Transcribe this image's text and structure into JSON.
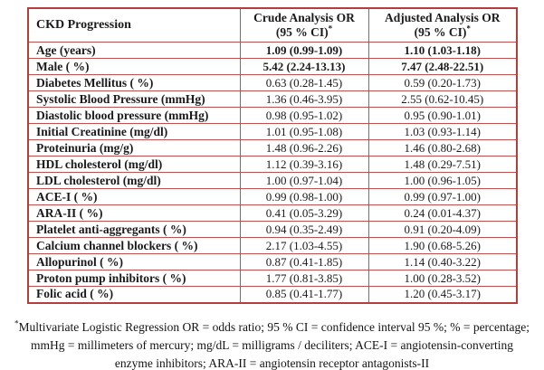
{
  "table": {
    "header": {
      "label": "CKD Progression",
      "crude_title": "Crude Analysis OR",
      "crude_sub": "(95 % CI)",
      "crude_sup": "*",
      "adjusted_title": "Adjusted Analysis OR",
      "adjusted_sub": "(95 % CI)",
      "adjusted_sup": "*"
    },
    "rows": [
      {
        "label": "Age (years)",
        "crude": "1.09 (0.99-1.09)",
        "adjusted": "1.10 (1.03-1.18)",
        "significant": true
      },
      {
        "label": "Male ( %)",
        "crude": "5.42 (2.24-13.13)",
        "adjusted": "7.47 (2.48-22.51)",
        "significant": true
      },
      {
        "label": "Diabetes Mellitus ( %)",
        "crude": "0.63 (0.28-1.45)",
        "adjusted": "0.59 (0.20-1.73)",
        "significant": false
      },
      {
        "label": "Systolic Blood Pressure (mmHg)",
        "crude": "1.36 (0.46-3.95)",
        "adjusted": "2.55 (0.62-10.45)",
        "significant": false
      },
      {
        "label": "Diastolic blood pressure (mmHg)",
        "crude": "0.98 (0.95-1.02)",
        "adjusted": "0.95 (0.90-1.01)",
        "significant": false
      },
      {
        "label": "Initial Creatinine (mg/dl)",
        "crude": "1.01 (0.95-1.08)",
        "adjusted": "1.03 (0.93-1.14)",
        "significant": false
      },
      {
        "label": "Proteinuria (mg/g)",
        "crude": "1.48 (0.96-2.26)",
        "adjusted": "1.46 (0.80-2.68)",
        "significant": false
      },
      {
        "label": "HDL cholesterol (mg/dl)",
        "crude": "1.12 (0.39-3.16)",
        "adjusted": "1.48 (0.29-7.51)",
        "significant": false
      },
      {
        "label": "LDL cholesterol (mg/dl)",
        "crude": "1.00 (0.97-1.04)",
        "adjusted": "1.00 (0.96-1.05)",
        "significant": false
      },
      {
        "label": "ACE-I ( %)",
        "crude": "0.99 (0.98-1.00)",
        "adjusted": "0.99 (0.97-1.00)",
        "significant": false
      },
      {
        "label": "ARA-II ( %)",
        "crude": "0.41 (0.05-3.29)",
        "adjusted": "0.24 (0.01-4.37)",
        "significant": false
      },
      {
        "label": "Platelet anti-aggregants ( %)",
        "crude": "0.94 (0.35-2.49)",
        "adjusted": "0.91 (0.20-4.09)",
        "significant": false
      },
      {
        "label": "Calcium channel blockers ( %)",
        "crude": "2.17 (1.03-4.55)",
        "adjusted": "1.90 (0.68-5.26)",
        "significant": false
      },
      {
        "label": "Allopurinol ( %)",
        "crude": "0.87 (0.41-1.85)",
        "adjusted": "1.14 (0.40-3.22)",
        "significant": false
      },
      {
        "label": "Proton pump inhibitors ( %)",
        "crude": "1.77 (0.81-3.85)",
        "adjusted": "1.00 (0.28-3.52)",
        "significant": false
      },
      {
        "label": "Folic acid ( %)",
        "crude": "0.85 (0.41-1.77)",
        "adjusted": "1.20 (0.45-3.17)",
        "significant": false
      }
    ],
    "border_color": "#c0504d"
  },
  "footnote": {
    "marker": "*",
    "lines": [
      "Multivariate Logistic Regression OR = odds ratio; 95 % CI = confidence interval 95 %; % = percentage;",
      "mmHg = millimeters of mercury; mg/dL = milligrams / deciliters; ACE-I = angiotensin-converting",
      "enzyme inhibitors; ARA-II = angiotensin receptor antagonists-II"
    ]
  }
}
